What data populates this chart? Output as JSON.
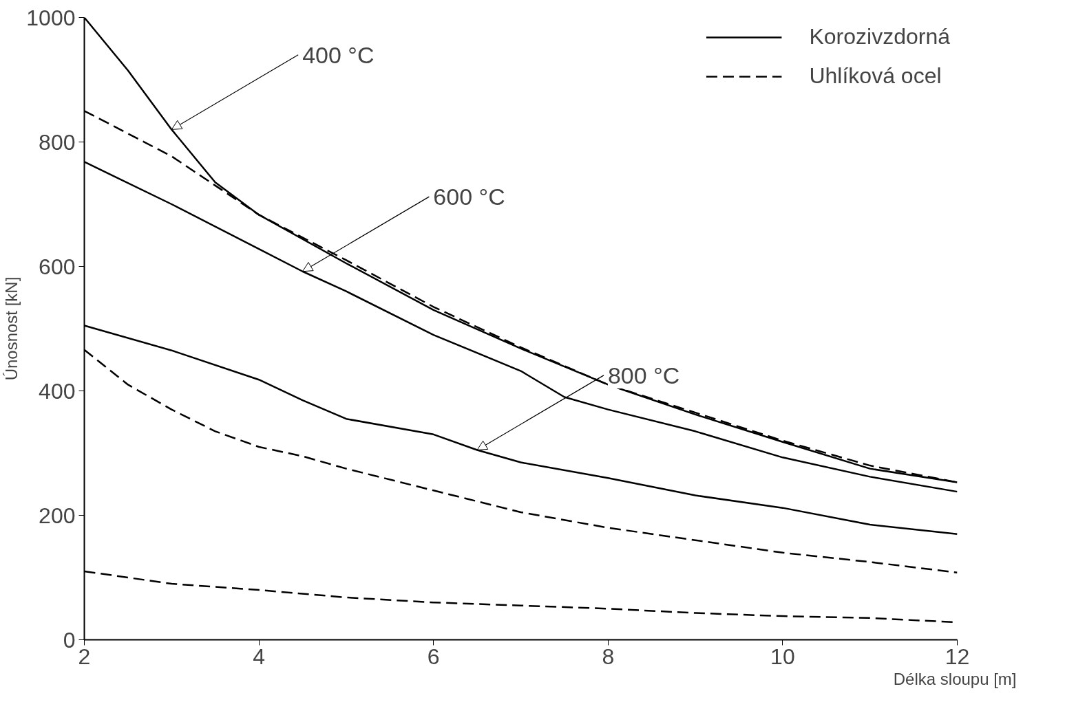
{
  "chart_data": {
    "type": "line",
    "xlabel": "Délka sloupu  [m]",
    "ylabel": "Únosnost [kN]",
    "x": [
      2,
      3,
      4,
      5,
      6,
      7,
      8,
      9,
      10,
      11,
      12
    ],
    "xlim": [
      2,
      12
    ],
    "xticks": [
      2,
      4,
      6,
      8,
      10,
      12
    ],
    "ylim": [
      0,
      1000
    ],
    "yticks": [
      0,
      200,
      400,
      600,
      800,
      1000
    ],
    "grid": false,
    "legend": "top right",
    "marker": "none",
    "series": [
      {
        "name": "Korozivzdorná",
        "color": "#000000",
        "line_style": "solid",
        "x": [
          2,
          2.5,
          3,
          3.5,
          4,
          5,
          6,
          7,
          8,
          9,
          10,
          11,
          12
        ],
        "values": [
          1000,
          915,
          820,
          735,
          683,
          605,
          530,
          468,
          410,
          362,
          318,
          275,
          253
        ]
      },
      {
        "name": "Uhlíková ocel",
        "color": "#000000",
        "line_style": "dashed",
        "x": [
          2,
          3,
          3.5,
          4,
          5,
          6,
          7,
          8,
          9,
          10,
          11,
          12
        ],
        "values": [
          850,
          777,
          730,
          683,
          610,
          535,
          470,
          410,
          365,
          320,
          280,
          253
        ]
      },
      {
        "color": "#000000",
        "line_style": "solid",
        "x": [
          2,
          3,
          4,
          4.5,
          5,
          6,
          7,
          7.5,
          8,
          9,
          10,
          11,
          12
        ],
        "values": [
          768,
          700,
          628,
          592,
          560,
          490,
          432,
          390,
          370,
          335,
          293,
          262,
          238
        ]
      },
      {
        "color": "#000000",
        "line_style": "solid",
        "x": [
          2,
          3,
          4,
          4.5,
          5,
          6,
          6.5,
          7,
          8,
          9,
          10,
          11,
          12
        ],
        "values": [
          505,
          465,
          418,
          385,
          355,
          330,
          305,
          285,
          260,
          232,
          212,
          185,
          170
        ]
      },
      {
        "color": "#000000",
        "line_style": "dashed",
        "x": [
          2,
          2.5,
          3,
          3.5,
          4,
          4.5,
          5,
          6,
          7,
          8,
          9,
          10,
          11,
          12
        ],
        "values": [
          466,
          410,
          370,
          335,
          310,
          295,
          275,
          240,
          205,
          180,
          160,
          140,
          125,
          108
        ]
      },
      {
        "color": "#000000",
        "line_style": "dashed",
        "values": [
          110,
          90,
          80,
          68,
          60,
          55,
          50,
          43,
          38,
          35,
          28
        ]
      }
    ],
    "annotations": [
      {
        "text": "400 °C",
        "x": 3,
        "y": 820
      },
      {
        "text": "600 °C",
        "x": 4.5,
        "y": 592
      },
      {
        "text": "800 °C",
        "x": 6.5,
        "y": 305
      }
    ]
  }
}
